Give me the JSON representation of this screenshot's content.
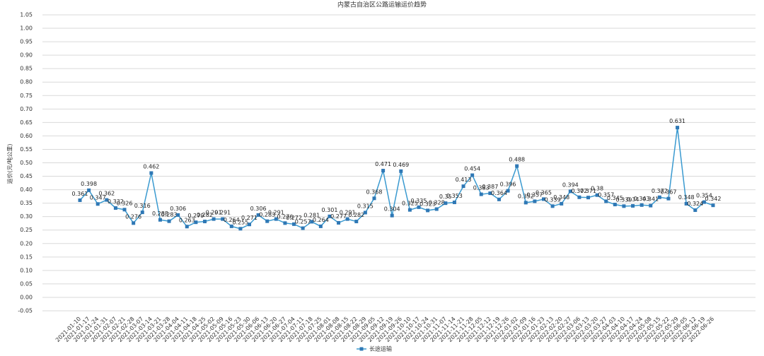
{
  "chart_data": {
    "type": "line",
    "title": "内蒙古自治区公路运输运价趋势",
    "y_label": "运价(元/吨公里)",
    "categories": [
      "2021-01-10",
      "2021-01-17",
      "2021-01-24",
      "2021-01-31",
      "2021-02-07",
      "2021-02-21",
      "2021-02-28",
      "2021-03-07",
      "2021-03-14",
      "2021-03-21",
      "2021-03-28",
      "2021-04-04",
      "2021-04-11",
      "2021-04-18",
      "2021-04-25",
      "2021-05-02",
      "2021-05-09",
      "2021-05-16",
      "2021-05-23",
      "2021-05-30",
      "2021-06-06",
      "2021-06-13",
      "2021-06-20",
      "2021-06-27",
      "2021-07-04",
      "2021-07-11",
      "2021-07-18",
      "2021-07-25",
      "2021-08-01",
      "2021-08-08",
      "2021-08-15",
      "2021-08-22",
      "2021-08-29",
      "2021-09-05",
      "2021-09-12",
      "2021-09-19",
      "2021-09-26",
      "2021-10-10",
      "2021-10-17",
      "2021-10-24",
      "2021-10-31",
      "2021-11-07",
      "2021-11-14",
      "2021-11-21",
      "2021-11-28",
      "2021-12-05",
      "2021-12-12",
      "2021-12-19",
      "2021-12-26",
      "2022-01-02",
      "2022-01-09",
      "2022-01-16",
      "2022-01-23",
      "2022-02-13",
      "2022-02-20",
      "2022-02-27",
      "2022-03-06",
      "2022-03-13",
      "2022-03-20",
      "2022-03-27",
      "2022-04-03",
      "2022-04-10",
      "2022-04-17",
      "2022-04-24",
      "2022-05-08",
      "2022-05-15",
      "2022-05-22",
      "2022-05-29",
      "2022-06-05",
      "2022-06-12",
      "2022-06-19",
      "2022-06-26"
    ],
    "series": [
      {
        "name": "长途运输",
        "color": "#3a9ad0",
        "values": [
          0.361,
          0.398,
          0.347,
          0.362,
          0.332,
          0.326,
          0.276,
          0.316,
          0.462,
          0.288,
          0.283,
          0.306,
          0.263,
          0.279,
          0.282,
          0.291,
          0.291,
          0.264,
          0.255,
          0.271,
          0.306,
          0.283,
          0.291,
          0.276,
          0.272,
          0.257,
          0.281,
          0.264,
          0.301,
          0.277,
          0.291,
          0.282,
          0.315,
          0.368,
          0.471,
          0.304,
          0.469,
          0.325,
          0.335,
          0.323,
          0.328,
          0.35,
          0.353,
          0.413,
          0.454,
          0.383,
          0.387,
          0.364,
          0.396,
          0.488,
          0.352,
          0.357,
          0.365,
          0.339,
          0.348,
          0.394,
          0.372,
          0.371,
          0.38,
          0.357,
          0.345,
          0.339,
          0.34,
          0.343,
          0.341,
          0.372,
          0.367,
          0.631,
          0.348,
          0.324,
          0.354,
          0.342
        ]
      }
    ],
    "ylim": [
      -0.05,
      1.05
    ],
    "yticks": [
      -0.05,
      {
        "value": 0,
        "label": "0.00"
      },
      0.05,
      {
        "value": 0.1,
        "label": "0.10"
      },
      0.15,
      {
        "value": 0.2,
        "label": "0.20"
      },
      0.25,
      {
        "value": 0.3,
        "label": "0.30"
      },
      0.35,
      {
        "value": 0.4,
        "label": "0.40"
      },
      0.45,
      {
        "value": 0.5,
        "label": "0.50"
      },
      0.55,
      {
        "value": 0.6,
        "label": "0.60"
      },
      0.65,
      {
        "value": 0.7,
        "label": "0.70"
      },
      0.75,
      {
        "value": 0.8,
        "label": "0.80"
      },
      0.85,
      {
        "value": 0.9,
        "label": "0.90"
      },
      0.95,
      {
        "value": 1,
        "label": "1.00"
      },
      1.05
    ],
    "grid": true,
    "legend": "bottom"
  }
}
